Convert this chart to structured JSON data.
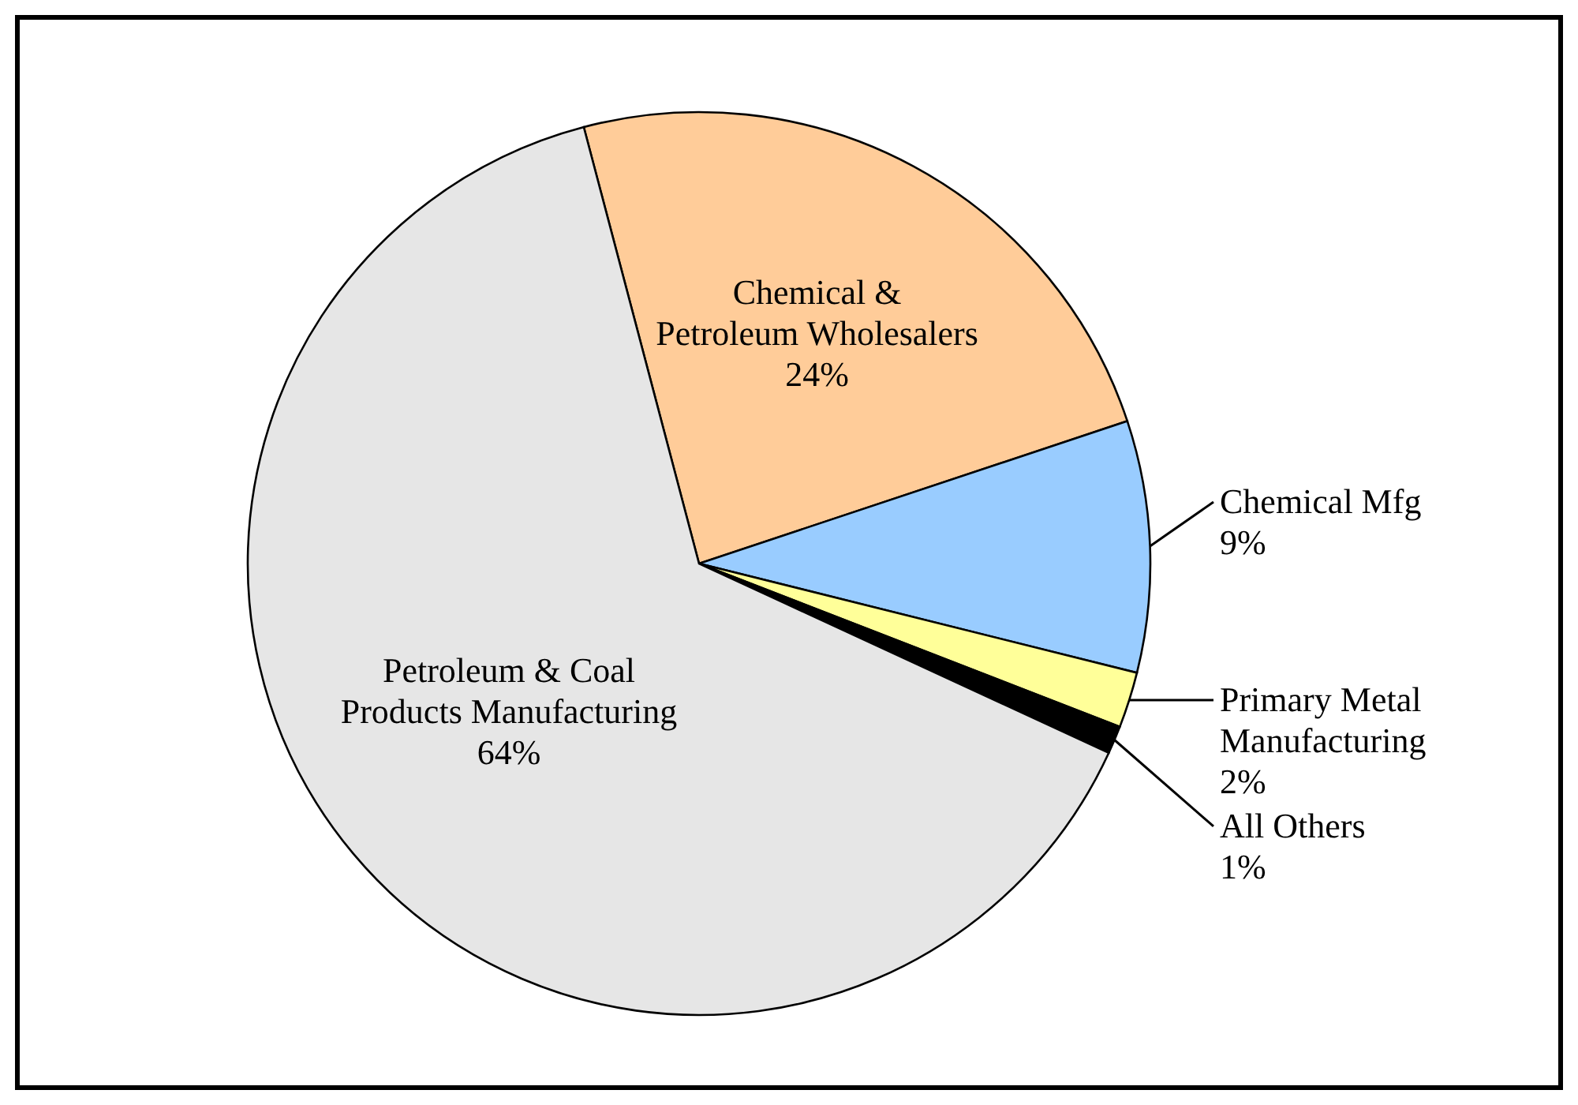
{
  "chart_data": {
    "type": "pie",
    "categories": [
      "Chemical &\nPetroleum Wholesalers",
      "Chemical Mfg",
      "Primary Metal\nManufacturing",
      "All Others",
      "Petroleum & Coal\nProducts Manufacturing"
    ],
    "values": [
      24,
      9,
      2,
      1,
      64
    ],
    "value_labels": [
      "24%",
      "9%",
      "2%",
      "1%",
      "64%"
    ],
    "colors": [
      "#ffcc99",
      "#99ccff",
      "#ffff99",
      "#000000",
      "#e6e6e6"
    ]
  }
}
